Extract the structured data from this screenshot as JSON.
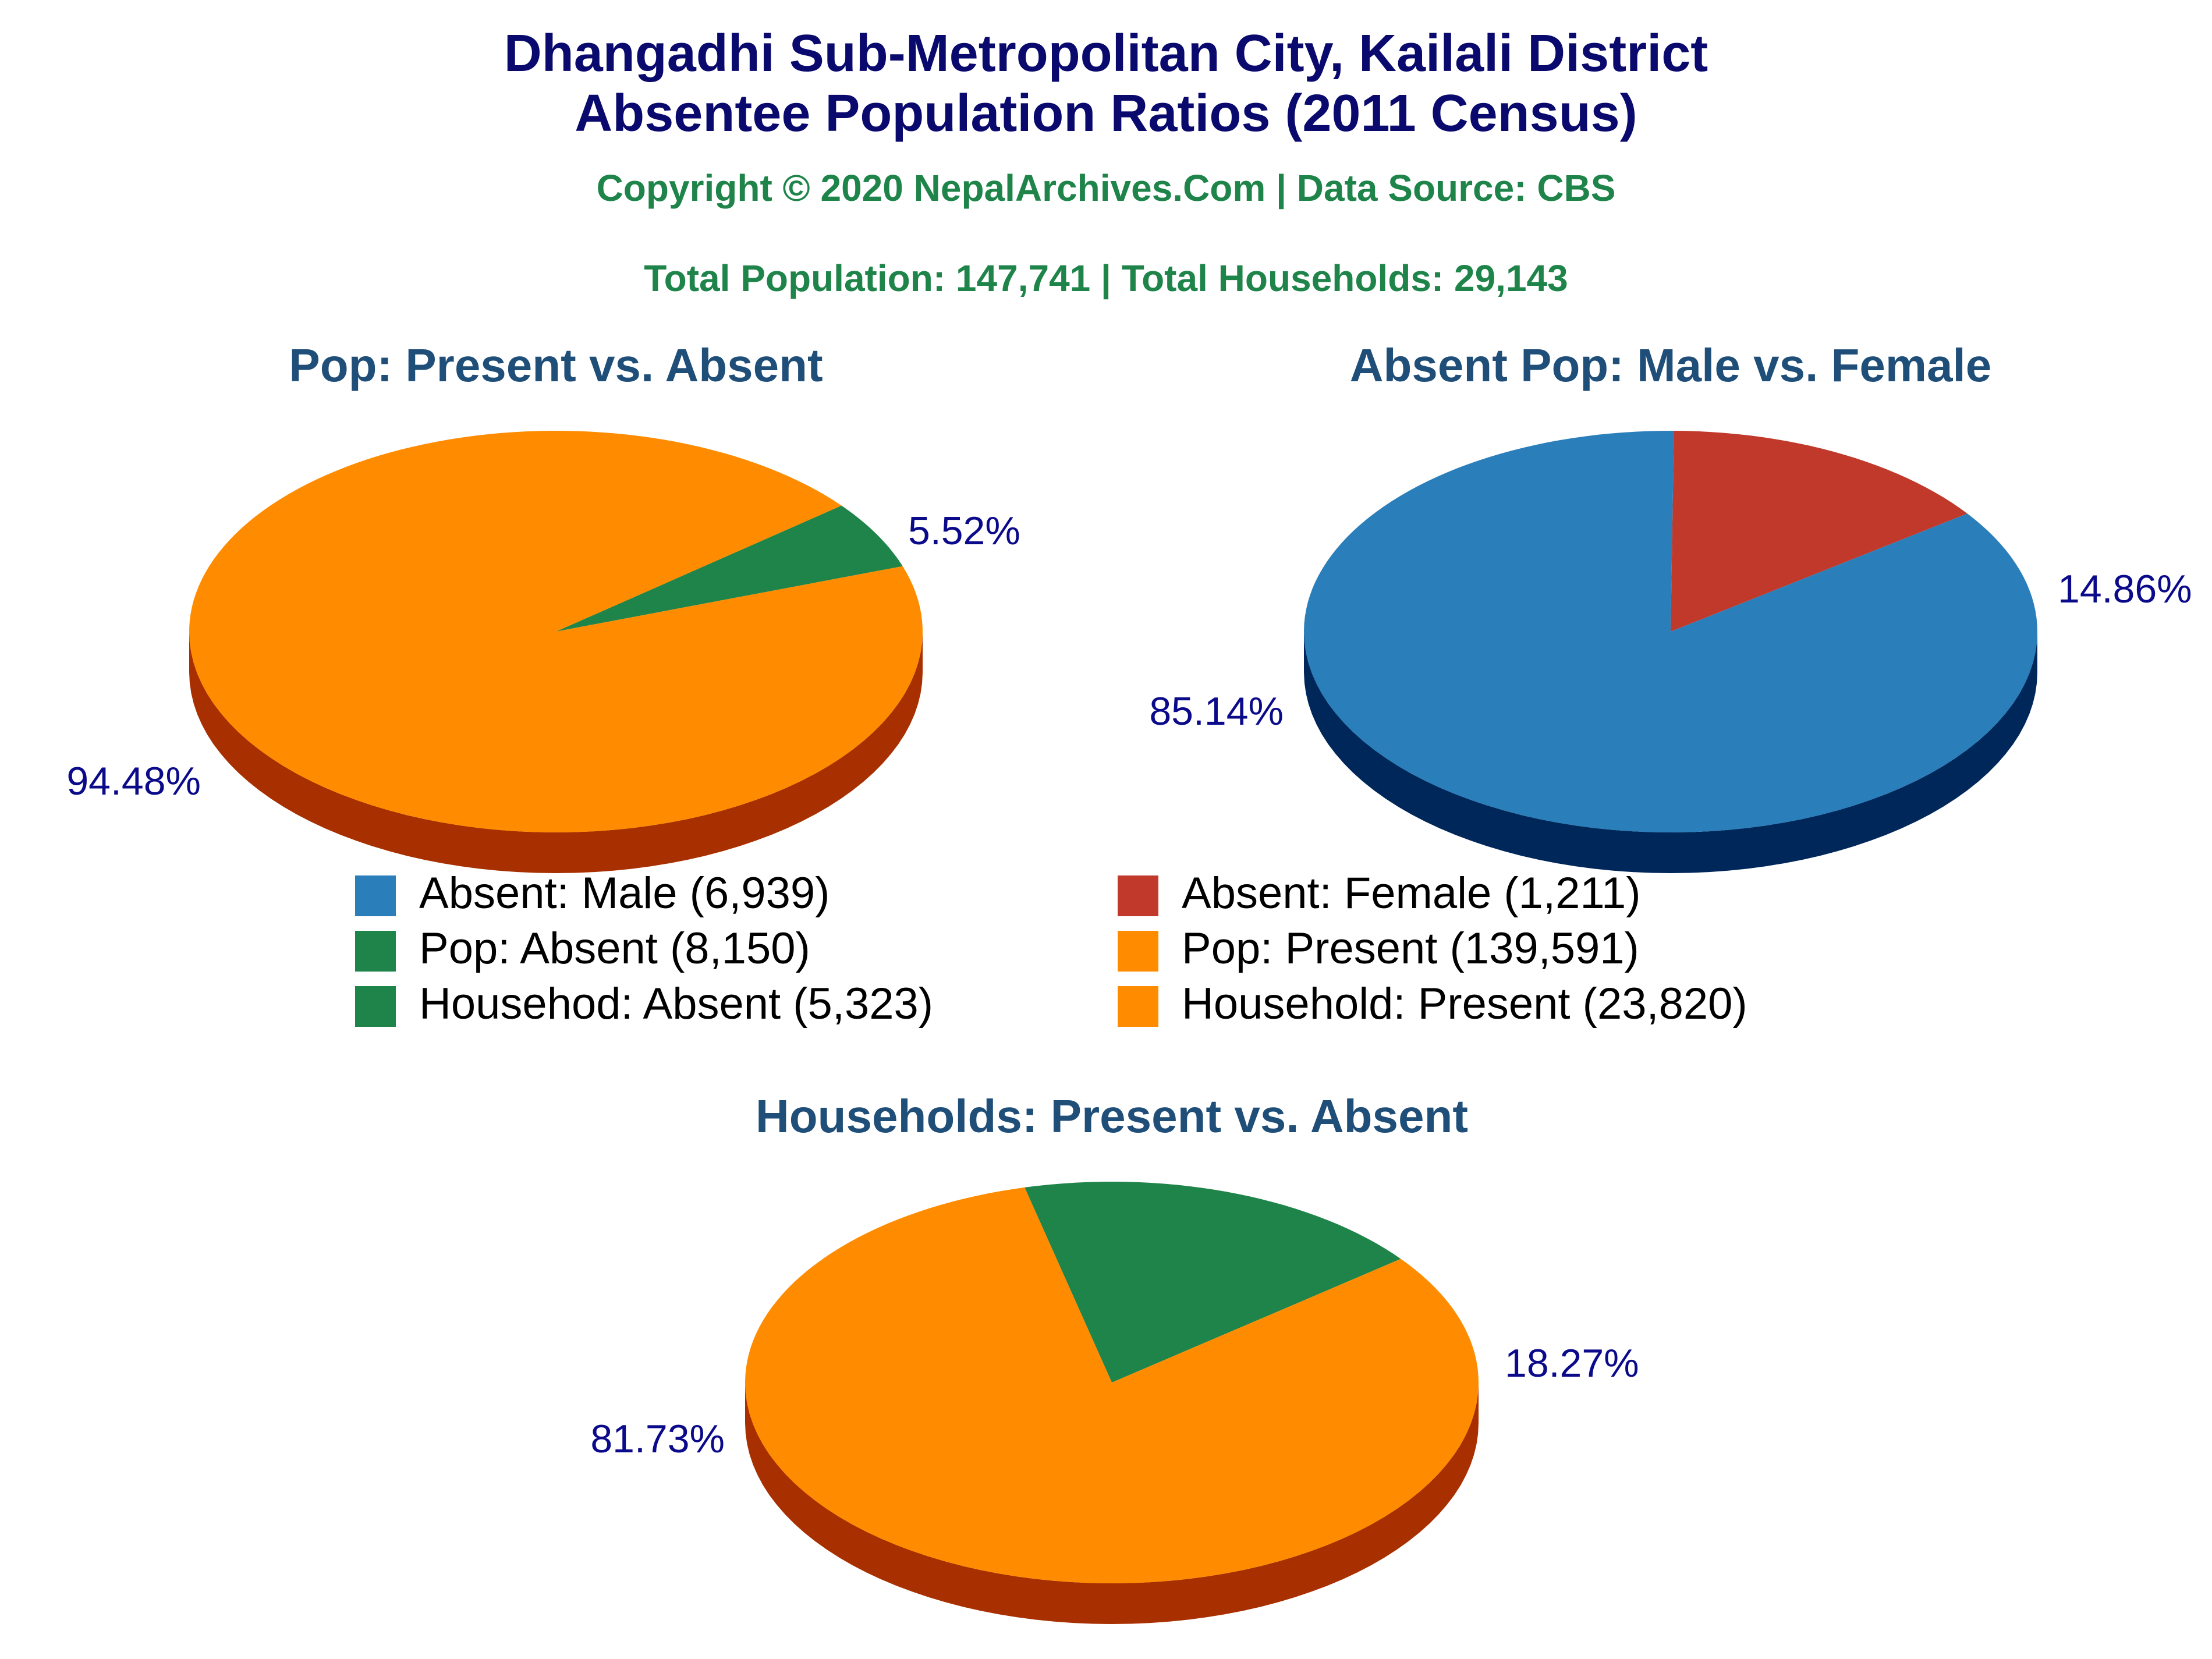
{
  "header": {
    "title_line1": "Dhangadhi Sub-Metropolitan City, Kailali District",
    "title_line2": "Absentee Population Ratios (2011 Census)",
    "copyright": "Copyright © 2020 NepalArchives.Com | Data Source: CBS",
    "totals": "Total Population: 147,741 | Total Households: 29,143"
  },
  "colors": {
    "title": "#0a0a6e",
    "subtitle": "#1e8449",
    "chart_title": "#1f4e79",
    "slice_label": "#0a0a8a",
    "male": "#2a7fbb",
    "male_side": "#00275a",
    "female": "#c0392b",
    "female_side": "#6b0000",
    "absent": "#1e8449",
    "absent_side": "#002e00",
    "present": "#ff8c00",
    "present_side": "#a83000"
  },
  "chart_data": [
    {
      "type": "pie",
      "title": "Pop: Present vs. Absent",
      "slices": [
        {
          "label": "Pop: Absent",
          "value": 8150,
          "percent_label": "5.52%",
          "color": "absent"
        },
        {
          "label": "Pop: Present",
          "value": 139591,
          "percent_label": "94.48%",
          "color": "present"
        }
      ]
    },
    {
      "type": "pie",
      "title": "Absent Pop: Male vs. Female",
      "slices": [
        {
          "label": "Absent: Female",
          "value": 1211,
          "percent_label": "14.86%",
          "color": "female"
        },
        {
          "label": "Absent: Male",
          "value": 6939,
          "percent_label": "85.14%",
          "color": "male"
        }
      ]
    },
    {
      "type": "pie",
      "title": "Households: Present vs. Absent",
      "slices": [
        {
          "label": "Househod: Absent",
          "value": 5323,
          "percent_label": "18.27%",
          "color": "absent"
        },
        {
          "label": "Household: Present",
          "value": 23820,
          "percent_label": "81.73%",
          "color": "present"
        }
      ]
    }
  ],
  "legend": [
    {
      "label": "Absent: Male (6,939)",
      "color": "male"
    },
    {
      "label": "Absent: Female (1,211)",
      "color": "female"
    },
    {
      "label": "Pop: Absent (8,150)",
      "color": "absent"
    },
    {
      "label": "Pop: Present (139,591)",
      "color": "present"
    },
    {
      "label": "Househod: Absent (5,323)",
      "color": "absent"
    },
    {
      "label": "Household: Present (23,820)",
      "color": "present"
    }
  ]
}
